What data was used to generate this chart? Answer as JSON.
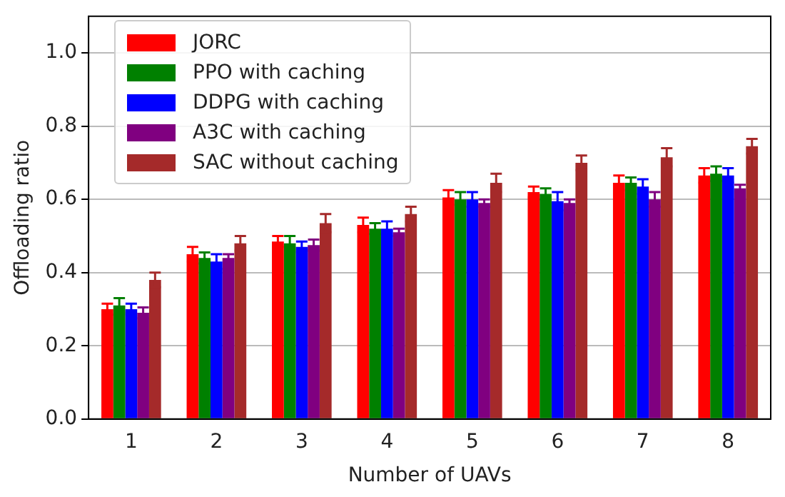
{
  "chart_data": {
    "type": "bar",
    "xlabel": "Number of UAVs",
    "ylabel": "Offloading ratio",
    "categories": [
      "1",
      "2",
      "3",
      "4",
      "5",
      "6",
      "7",
      "8"
    ],
    "ylim": [
      0,
      1.1
    ],
    "yticks": [
      {
        "value": 0,
        "label": "0.0"
      },
      0.2,
      0.4,
      0.6,
      0.8,
      {
        "value": 1,
        "label": "1.0"
      }
    ],
    "grid": "y",
    "legend": "top left",
    "series": [
      {
        "name": "JORC",
        "color": "#ff0000",
        "values": [
          0.3,
          0.45,
          0.485,
          0.53,
          0.605,
          0.62,
          0.645,
          0.665
        ],
        "errors": [
          0.015,
          0.02,
          0.015,
          0.02,
          0.02,
          0.015,
          0.02,
          0.02
        ]
      },
      {
        "name": "PPO with caching",
        "color": "#008000",
        "values": [
          0.31,
          0.44,
          0.48,
          0.52,
          0.6,
          0.615,
          0.645,
          0.67
        ],
        "errors": [
          0.02,
          0.015,
          0.02,
          0.015,
          0.02,
          0.015,
          0.015,
          0.02
        ]
      },
      {
        "name": "DDPG with caching",
        "color": "#0000ff",
        "values": [
          0.3,
          0.43,
          0.47,
          0.52,
          0.6,
          0.595,
          0.635,
          0.665
        ],
        "errors": [
          0.015,
          0.02,
          0.015,
          0.02,
          0.02,
          0.025,
          0.02,
          0.02
        ]
      },
      {
        "name": "A3C with caching",
        "color": "#800080",
        "values": [
          0.29,
          0.44,
          0.475,
          0.51,
          0.59,
          0.59,
          0.6,
          0.63
        ],
        "errors": [
          0.015,
          0.01,
          0.015,
          0.01,
          0.01,
          0.01,
          0.02,
          0.01
        ]
      },
      {
        "name": "SAC without caching",
        "color": "#a52a2a",
        "values": [
          0.38,
          0.48,
          0.535,
          0.56,
          0.645,
          0.7,
          0.715,
          0.745
        ],
        "errors": [
          0.02,
          0.02,
          0.025,
          0.02,
          0.025,
          0.02,
          0.025,
          0.02
        ]
      }
    ]
  }
}
